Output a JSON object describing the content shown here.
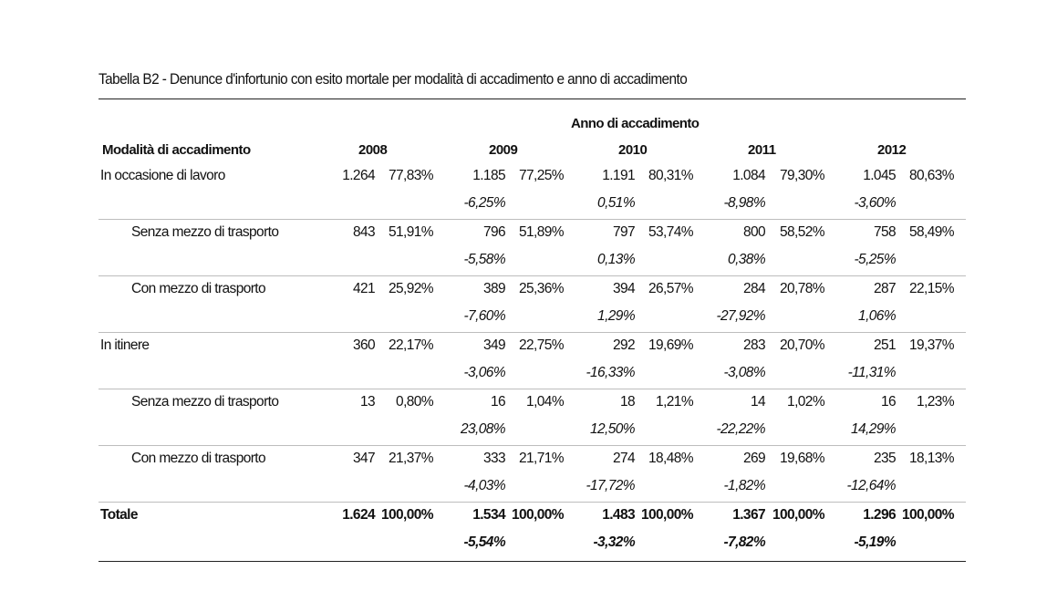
{
  "title": "Tabella B2 - Denunce d'infortunio con esito mortale per modalità di accadimento e anno di accadimento",
  "group_header": "Anno di accadimento",
  "row_header": "Modalità di accadimento",
  "years": [
    "2008",
    "2009",
    "2010",
    "2011",
    "2012"
  ],
  "rows": [
    {
      "label": "In occasione di lavoro",
      "indent": false,
      "bold": false,
      "values": [
        {
          "n": "1.264",
          "p": "77,83%",
          "c": ""
        },
        {
          "n": "1.185",
          "p": "77,25%",
          "c": "-6,25%"
        },
        {
          "n": "1.191",
          "p": "80,31%",
          "c": "0,51%"
        },
        {
          "n": "1.084",
          "p": "79,30%",
          "c": "-8,98%"
        },
        {
          "n": "1.045",
          "p": "80,63%",
          "c": "-3,60%"
        }
      ]
    },
    {
      "label": "Senza mezzo di trasporto",
      "indent": true,
      "bold": false,
      "values": [
        {
          "n": "843",
          "p": "51,91%",
          "c": ""
        },
        {
          "n": "796",
          "p": "51,89%",
          "c": "-5,58%"
        },
        {
          "n": "797",
          "p": "53,74%",
          "c": "0,13%"
        },
        {
          "n": "800",
          "p": "58,52%",
          "c": "0,38%"
        },
        {
          "n": "758",
          "p": "58,49%",
          "c": "-5,25%"
        }
      ]
    },
    {
      "label": "Con mezzo di trasporto",
      "indent": true,
      "bold": false,
      "values": [
        {
          "n": "421",
          "p": "25,92%",
          "c": ""
        },
        {
          "n": "389",
          "p": "25,36%",
          "c": "-7,60%"
        },
        {
          "n": "394",
          "p": "26,57%",
          "c": "1,29%"
        },
        {
          "n": "284",
          "p": "20,78%",
          "c": "-27,92%"
        },
        {
          "n": "287",
          "p": "22,15%",
          "c": "1,06%"
        }
      ]
    },
    {
      "label": "In itinere",
      "indent": false,
      "bold": false,
      "values": [
        {
          "n": "360",
          "p": "22,17%",
          "c": ""
        },
        {
          "n": "349",
          "p": "22,75%",
          "c": "-3,06%"
        },
        {
          "n": "292",
          "p": "19,69%",
          "c": "-16,33%"
        },
        {
          "n": "283",
          "p": "20,70%",
          "c": "-3,08%"
        },
        {
          "n": "251",
          "p": "19,37%",
          "c": "-11,31%"
        }
      ]
    },
    {
      "label": "Senza mezzo di trasporto",
      "indent": true,
      "bold": false,
      "values": [
        {
          "n": "13",
          "p": "0,80%",
          "c": ""
        },
        {
          "n": "16",
          "p": "1,04%",
          "c": "23,08%"
        },
        {
          "n": "18",
          "p": "1,21%",
          "c": "12,50%"
        },
        {
          "n": "14",
          "p": "1,02%",
          "c": "-22,22%"
        },
        {
          "n": "16",
          "p": "1,23%",
          "c": "14,29%"
        }
      ]
    },
    {
      "label": "Con mezzo di trasporto",
      "indent": true,
      "bold": false,
      "values": [
        {
          "n": "347",
          "p": "21,37%",
          "c": ""
        },
        {
          "n": "333",
          "p": "21,71%",
          "c": "-4,03%"
        },
        {
          "n": "274",
          "p": "18,48%",
          "c": "-17,72%"
        },
        {
          "n": "269",
          "p": "19,68%",
          "c": "-1,82%"
        },
        {
          "n": "235",
          "p": "18,13%",
          "c": "-12,64%"
        }
      ]
    },
    {
      "label": "Totale",
      "indent": false,
      "bold": true,
      "values": [
        {
          "n": "1.624",
          "p": "100,00%",
          "c": ""
        },
        {
          "n": "1.534",
          "p": "100,00%",
          "c": "-5,54%"
        },
        {
          "n": "1.483",
          "p": "100,00%",
          "c": "-3,32%"
        },
        {
          "n": "1.367",
          "p": "100,00%",
          "c": "-7,82%"
        },
        {
          "n": "1.296",
          "p": "100,00%",
          "c": "-5,19%"
        }
      ]
    }
  ]
}
